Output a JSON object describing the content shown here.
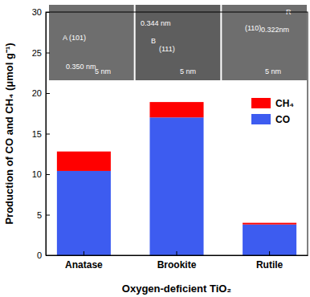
{
  "chart_data": {
    "type": "bar",
    "stacked": true,
    "x_label": "Oxygen-deficient TiO₂",
    "y_label": "Production of CO and CH₄ (μmol g⁻¹)",
    "categories": [
      "Anatase",
      "Brookite",
      "Rutile"
    ],
    "series": [
      {
        "name": "CO",
        "color": "#3d5cf0",
        "values": [
          10.4,
          17.0,
          3.8
        ]
      },
      {
        "name": "CH₄",
        "color": "#ff0000",
        "values": [
          2.4,
          1.9,
          0.2
        ]
      }
    ],
    "ylim": [
      0,
      30
    ],
    "yticks": [
      0,
      5,
      10,
      15,
      20,
      25,
      30
    ],
    "legend": "upper right",
    "annotations": [
      "A (101)",
      "0.350 nm",
      "5 nm",
      "0.344 nm",
      "B",
      "(111)",
      "5 nm",
      "R",
      "(110)",
      "0.322nm",
      "5 nm"
    ]
  }
}
